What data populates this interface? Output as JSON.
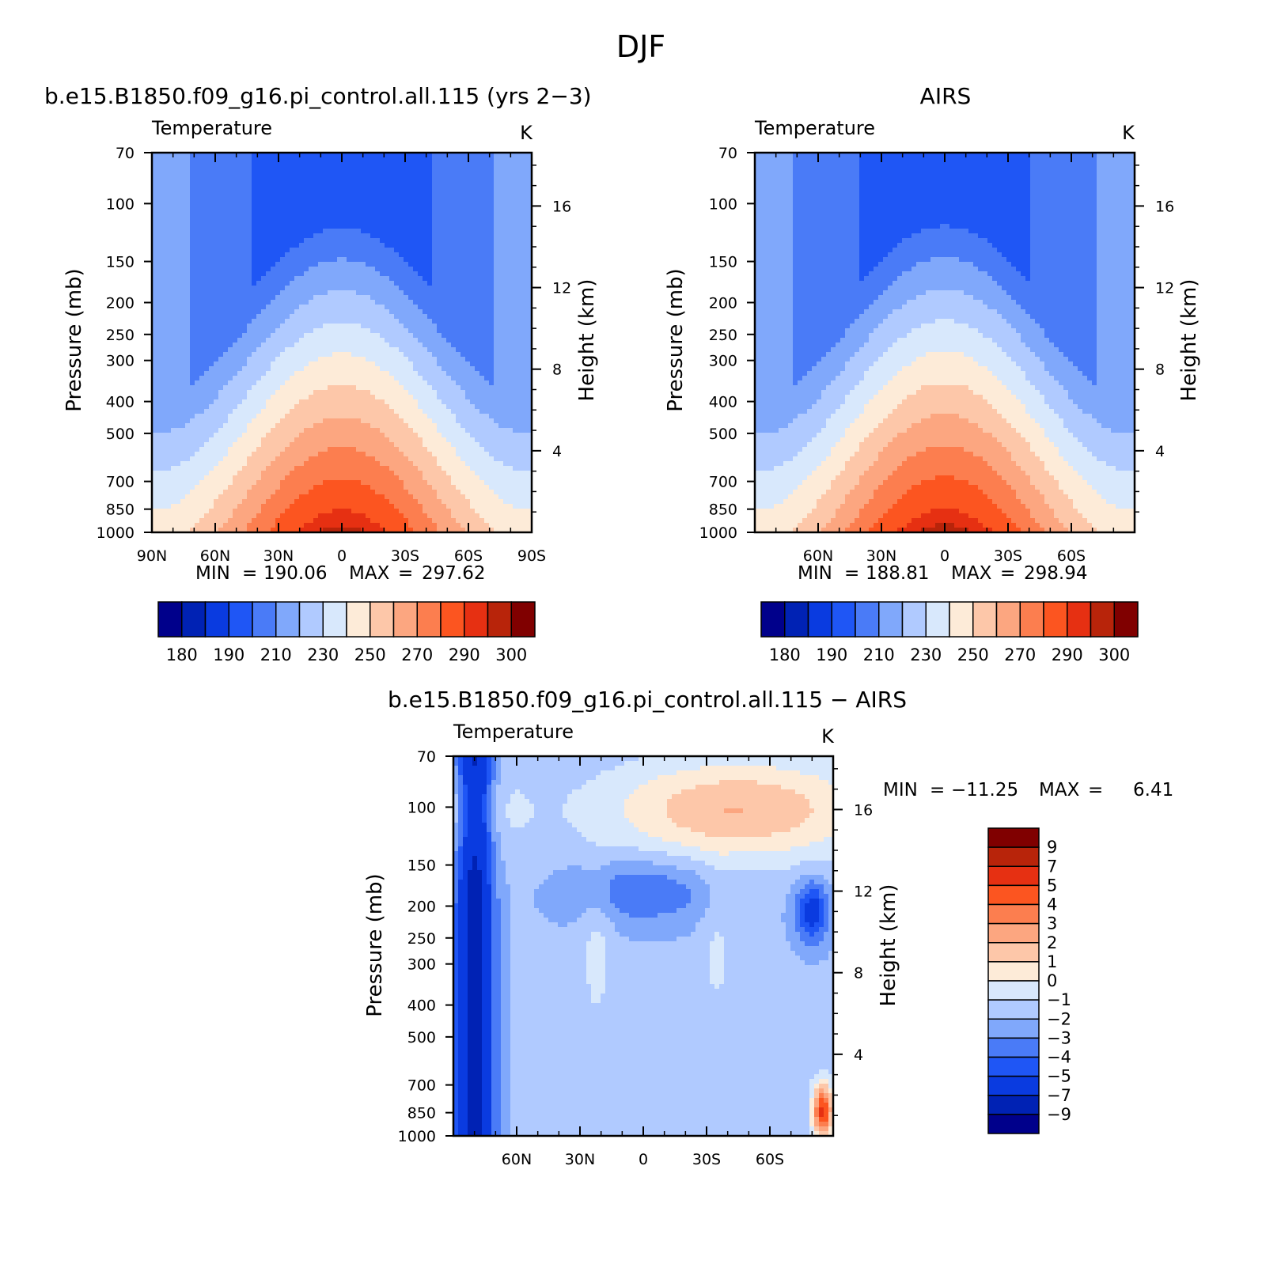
{
  "page": {
    "title": "DJF"
  },
  "chart_data": [
    {
      "type": "heatmap",
      "title": "b.e15.B1850.f09_g16.pi_control.all.115 (yrs 2−3)",
      "subtitle_left": "Temperature",
      "units": "K",
      "ylabel": "Pressure (mb)",
      "ylabel_right": "Height (km)",
      "x_ticks": [
        "90N",
        "60N",
        "30N",
        "0",
        "30S",
        "60S",
        "90S"
      ],
      "x_tick_lat": [
        90,
        60,
        30,
        0,
        -30,
        -60,
        -90
      ],
      "xlim": [
        90,
        -90
      ],
      "y_ticks": [
        70,
        100,
        150,
        200,
        250,
        300,
        400,
        500,
        700,
        850,
        1000
      ],
      "ylim": [
        70,
        1000
      ],
      "y_scale": "log",
      "height_ticks": [
        4,
        8,
        12,
        16
      ],
      "stats": {
        "min_label": "MIN",
        "min": "190.06",
        "max_label": "MAX",
        "max": "297.62"
      },
      "contour_levels": [
        180,
        185,
        190,
        200,
        210,
        220,
        230,
        240,
        250,
        260,
        270,
        280,
        290,
        295,
        300
      ],
      "colorbar_labels": [
        "180",
        "190",
        "210",
        "230",
        "250",
        "270",
        "290",
        "300"
      ],
      "colorbar_orientation": "horizontal",
      "field": "temperature_model"
    },
    {
      "type": "heatmap",
      "title": "AIRS",
      "subtitle_left": "Temperature",
      "units": "K",
      "ylabel": "Pressure (mb)",
      "ylabel_right": "Height (km)",
      "x_ticks": [
        "60N",
        "30N",
        "0",
        "30S",
        "60S"
      ],
      "x_tick_lat": [
        60,
        30,
        0,
        -30,
        -60
      ],
      "xlim": [
        90,
        -90
      ],
      "y_ticks": [
        70,
        100,
        150,
        200,
        250,
        300,
        400,
        500,
        700,
        850,
        1000
      ],
      "ylim": [
        70,
        1000
      ],
      "y_scale": "log",
      "height_ticks": [
        4,
        8,
        12,
        16
      ],
      "stats": {
        "min_label": "MIN",
        "min": "188.81",
        "max_label": "MAX",
        "max": "298.94"
      },
      "contour_levels": [
        180,
        185,
        190,
        200,
        210,
        220,
        230,
        240,
        250,
        260,
        270,
        280,
        290,
        295,
        300
      ],
      "colorbar_labels": [
        "180",
        "190",
        "210",
        "230",
        "250",
        "270",
        "290",
        "300"
      ],
      "colorbar_orientation": "horizontal",
      "field": "temperature_obs"
    },
    {
      "type": "heatmap",
      "title": "b.e15.B1850.f09_g16.pi_control.all.115 − AIRS",
      "subtitle_left": "Temperature",
      "units": "K",
      "ylabel": "Pressure (mb)",
      "ylabel_right": "Height (km)",
      "x_ticks": [
        "60N",
        "30N",
        "0",
        "30S",
        "60S"
      ],
      "x_tick_lat": [
        60,
        30,
        0,
        -30,
        -60
      ],
      "xlim": [
        90,
        -90
      ],
      "y_ticks": [
        70,
        100,
        150,
        200,
        250,
        300,
        400,
        500,
        700,
        850,
        1000
      ],
      "ylim": [
        70,
        1000
      ],
      "y_scale": "log",
      "height_ticks": [
        4,
        8,
        12,
        16
      ],
      "stats": {
        "min_label": "MIN",
        "min": "−11.25",
        "max_label": "MAX",
        "max": "6.41"
      },
      "contour_levels": [
        -9,
        -7,
        -5,
        -4,
        -3,
        -2,
        -1,
        0,
        1,
        2,
        3,
        4,
        5,
        7,
        9
      ],
      "colorbar_labels": [
        "9",
        "7",
        "5",
        "4",
        "3",
        "2",
        "1",
        "0",
        "−1",
        "−2",
        "−3",
        "−4",
        "−5",
        "−7",
        "−9"
      ],
      "colorbar_orientation": "vertical",
      "field": "difference"
    }
  ],
  "palette": [
    "#00008b",
    "#0022b4",
    "#0a3be0",
    "#1f56f5",
    "#4a7bf7",
    "#80a8fb",
    "#b0caff",
    "#d8e8fc",
    "#fdebd8",
    "#fdc7a9",
    "#fca680",
    "#fc7e4f",
    "#fc5520",
    "#e63012",
    "#b8240a",
    "#800000"
  ]
}
